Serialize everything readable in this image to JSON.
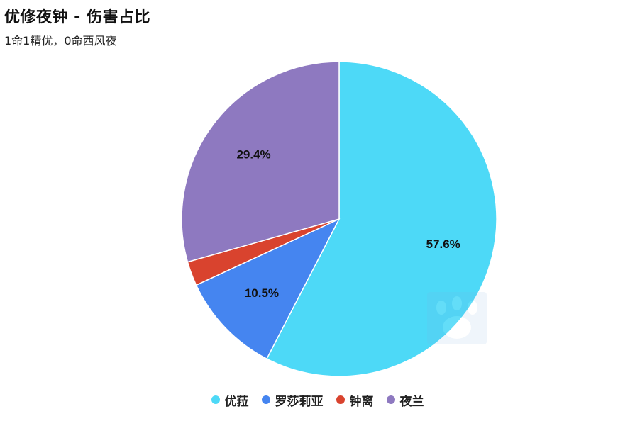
{
  "header": {
    "title": "优修夜钟 - 伤害占比",
    "subtitle": "1命1精优，0命西风夜"
  },
  "colors": {
    "background": "#ffffff",
    "slice_border": "#ffffff",
    "label_text": "#111111"
  },
  "chart_data": {
    "type": "pie",
    "title": "优修夜钟 - 伤害占比",
    "subtitle": "1命1精优，0命西风夜",
    "legend_position": "bottom",
    "start_angle_deg": 0,
    "direction": "clockwise",
    "slices": [
      {
        "name": "优菈",
        "value": 57.6,
        "label": "57.6%",
        "color": "#4dd9f7"
      },
      {
        "name": "罗莎莉亚",
        "value": 10.5,
        "label": "10.5%",
        "color": "#4585f0"
      },
      {
        "name": "钟离",
        "value": 2.5,
        "label": "",
        "color": "#d9432e"
      },
      {
        "name": "夜兰",
        "value": 29.4,
        "label": "29.4%",
        "color": "#8e79c0"
      }
    ]
  },
  "watermark": {
    "icon": "paw-logo-icon"
  }
}
